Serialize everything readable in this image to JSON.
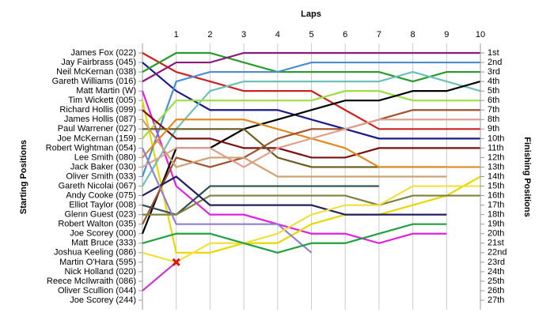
{
  "chart_data": {
    "type": "line",
    "title": "Laps",
    "y_label_left": "Starting Positions",
    "y_label_right": "Finishing Positions",
    "x": [
      0,
      1,
      2,
      3,
      4,
      5,
      6,
      7,
      8,
      9,
      10
    ],
    "xlim": [
      0,
      10
    ],
    "xticks": [
      1,
      2,
      3,
      4,
      5,
      6,
      7,
      8,
      9,
      10
    ],
    "ylim": [
      1,
      27
    ],
    "grid": true,
    "starting_positions": [
      "James Fox (022)",
      "Jay Fairbrass (045)",
      "Neil McKernan (038)",
      "Gareth Williams (016)",
      "Matt Martin (W)",
      "Tim Wickett (005)",
      "Richard Hollis (099)",
      "James Hollis (087)",
      "Paul Warrener (027)",
      "Joe McKernan (159)",
      "Robert Wightman (054)",
      "Lee Smith (080)",
      "Jack Baker (030)",
      "Oliver Smith (033)",
      "Gareth Nicolai (067)",
      "Andy Cooke (075)",
      "Elliot Taylor (008)",
      "Glenn Guest (023)",
      "Robert Walton (035)",
      "Joe Scorey (000)",
      "Matt Bruce (333)",
      "Joshua Keeling (086)",
      "Martin O'Hara (595)",
      "Nick Holland (020)",
      "Reece McIlwraith (086)",
      "Oliver Scullion (044)",
      "Joe Scorey (244)"
    ],
    "finishing_positions": [
      "1st",
      "2nd",
      "3rd",
      "4th",
      "5th",
      "6th",
      "7th",
      "8th",
      "9th",
      "10th",
      "11th",
      "12th",
      "13th",
      "14th",
      "15th",
      "16th",
      "17th",
      "18th",
      "19th",
      "20th",
      "21st",
      "22nd",
      "23rd",
      "24th",
      "25th",
      "26th",
      "27th"
    ],
    "series": [
      {
        "color": "#cc2222",
        "values": [
          1,
          3,
          4,
          5,
          5,
          5,
          7,
          9,
          9,
          9,
          9
        ]
      },
      {
        "color": "#1a1a8c",
        "values": [
          2,
          5,
          7,
          7,
          7,
          8,
          9,
          10,
          10,
          10,
          10
        ]
      },
      {
        "color": "#2a9a2a",
        "values": [
          3,
          1,
          1,
          2,
          3,
          3,
          3,
          3,
          4,
          3,
          3
        ]
      },
      {
        "color": "#8b1a7a",
        "values": [
          4,
          2,
          2,
          1,
          1,
          1,
          1,
          1,
          1,
          1,
          1
        ]
      },
      {
        "color": "#e020e0",
        "values": [
          5,
          15,
          18,
          18,
          19,
          20,
          20,
          21,
          20,
          20,
          null
        ]
      },
      {
        "color": "#e8d800",
        "values": [
          6,
          22,
          22,
          21,
          21,
          19,
          18,
          18,
          17,
          16,
          14
        ]
      },
      {
        "color": "#4a8ed0",
        "values": [
          14,
          4,
          3,
          3,
          3,
          2,
          2,
          2,
          2,
          2,
          2
        ]
      },
      {
        "color": "#6cc0b8",
        "values": [
          15,
          9,
          5,
          4,
          4,
          4,
          4,
          4,
          3,
          4,
          5
        ]
      },
      {
        "color": "#99e040",
        "values": [
          10,
          6,
          6,
          6,
          6,
          6,
          5,
          5,
          6,
          6,
          6
        ]
      },
      {
        "color": "#000000",
        "values": [
          20,
          11,
          11,
          9,
          8,
          7,
          6,
          6,
          5,
          5,
          4
        ]
      },
      {
        "color": "#7a1010",
        "values": [
          7,
          10,
          10,
          11,
          11,
          12,
          12,
          11,
          11,
          11,
          11
        ]
      },
      {
        "color": "#6b5a1e",
        "values": [
          9,
          9,
          9,
          9,
          12,
          13,
          13,
          13,
          13,
          13,
          null
        ]
      },
      {
        "color": "#e08a20",
        "values": [
          12,
          8,
          8,
          8,
          9,
          10,
          11,
          13,
          13,
          13,
          13
        ]
      },
      {
        "color": "#a0522d",
        "values": [
          19,
          12,
          13,
          12,
          10,
          9,
          9,
          8,
          7,
          7,
          7
        ]
      },
      {
        "color": "#e0a090",
        "values": [
          13,
          11,
          11,
          13,
          11,
          10,
          9,
          8,
          8,
          8,
          8
        ]
      },
      {
        "color": "#2f4f4f",
        "values": [
          17,
          18,
          15,
          15,
          15,
          15,
          15,
          15,
          null,
          null,
          null
        ]
      },
      {
        "color": "#808040",
        "values": [
          18,
          18,
          16,
          16,
          16,
          16,
          16,
          17,
          16,
          16,
          16
        ]
      },
      {
        "color": "#202060",
        "values": [
          16,
          14,
          17,
          17,
          17,
          17,
          18,
          18,
          18,
          18,
          null
        ]
      },
      {
        "color": "#9080d0",
        "values": [
          11,
          19,
          19,
          19,
          19,
          22,
          null,
          null,
          null,
          null,
          null
        ]
      },
      {
        "color": "#f0e040",
        "values": [
          22,
          23,
          21,
          21,
          20,
          18,
          17,
          17,
          15,
          15,
          15
        ]
      },
      {
        "color": "#20a040",
        "values": [
          21,
          20,
          20,
          21,
          22,
          21,
          21,
          20,
          19,
          19,
          null
        ]
      },
      {
        "color": "#d0a070",
        "values": [
          8,
          13,
          12,
          12,
          14,
          14,
          14,
          14,
          14,
          14,
          null
        ]
      },
      {
        "color": "#cc33cc",
        "values": [
          26,
          23,
          null,
          null,
          null,
          null,
          null,
          null,
          null,
          null,
          null
        ],
        "retired": true
      }
    ]
  }
}
